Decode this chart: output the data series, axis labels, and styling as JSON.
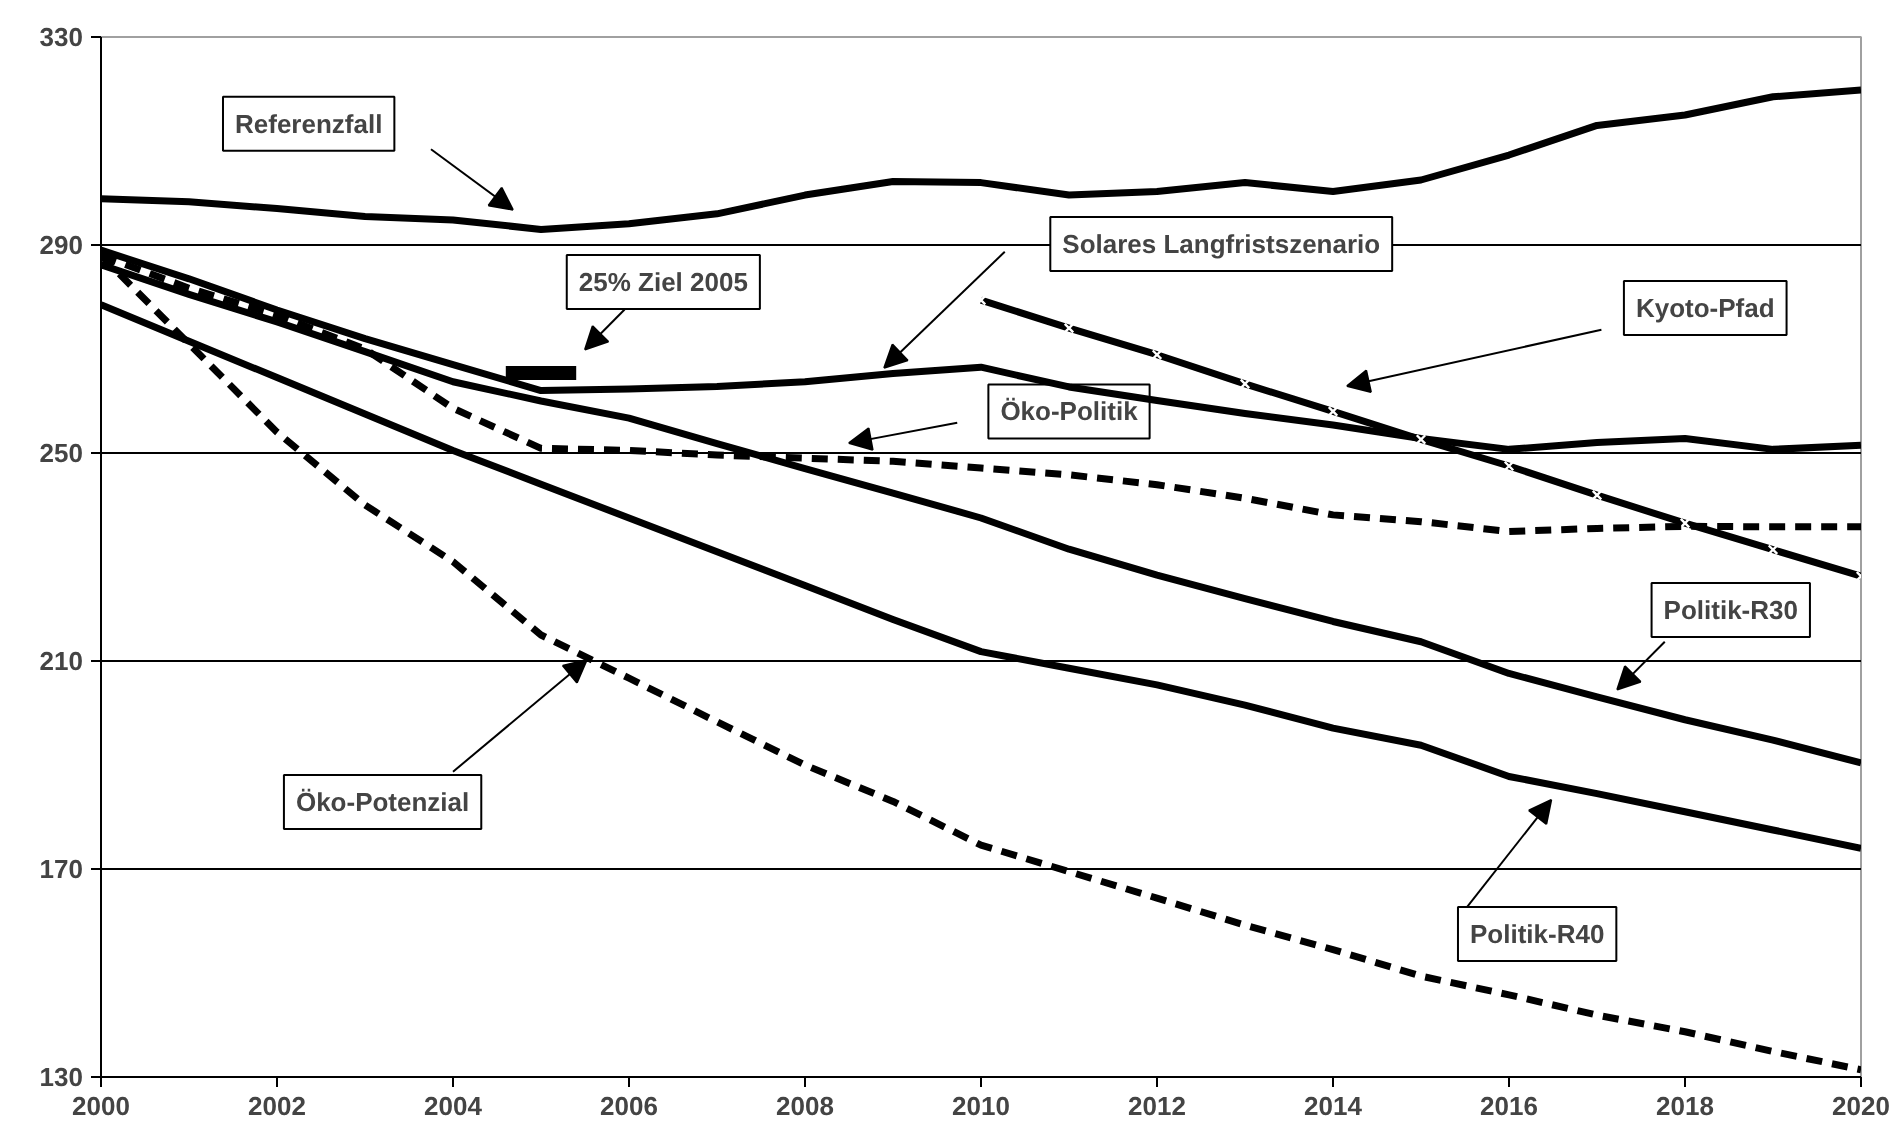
{
  "chart_data": {
    "type": "line",
    "x": [
      2000,
      2001,
      2002,
      2003,
      2004,
      2005,
      2006,
      2007,
      2008,
      2009,
      2010,
      2011,
      2012,
      2013,
      2014,
      2015,
      2016,
      2017,
      2018,
      2019,
      2020
    ],
    "xlim": [
      2000,
      2020
    ],
    "xticks": [
      2000,
      2002,
      2004,
      2006,
      2008,
      2010,
      2012,
      2014,
      2016,
      2018,
      2020
    ],
    "ylim": [
      130,
      330
    ],
    "yticks": [
      130,
      170,
      210,
      250,
      290,
      330
    ],
    "grid": "y",
    "marker": "none",
    "series": [
      {
        "name": "Referenzfall",
        "color": "#000000",
        "line_style": "solid",
        "values": [
          298.9,
          298.3,
          297,
          295.5,
          294.8,
          293,
          294.1,
          296,
          299.6,
          302.2,
          302,
          299.6,
          300.3,
          302,
          300.3,
          302.5,
          307.3,
          313,
          315,
          318.5,
          319.8
        ]
      },
      {
        "name": "25% Ziel 2005",
        "color": "#000000",
        "line_style": "solid",
        "x": [
          2004.6,
          2005.4
        ],
        "values": [
          265.4,
          265.4
        ]
      },
      {
        "name": "Solares Langfristszenario",
        "color": "#000000",
        "line_style": "solid",
        "values": [
          289,
          283.5,
          277.5,
          272,
          267,
          262,
          262.3,
          262.8,
          263.7,
          265.3,
          266.5,
          262.7,
          260.1,
          257.6,
          255.4,
          252.8,
          250.7,
          252,
          252.8,
          250.7,
          251.5
        ]
      },
      {
        "name": "Kyoto-Pfad",
        "color": "#000000",
        "line_style": "solid",
        "marker": "cross",
        "x": [
          2010,
          2011,
          2012,
          2013,
          2014,
          2015,
          2016,
          2017,
          2018,
          2019,
          2020
        ],
        "values": [
          279.4,
          274,
          268.9,
          263.3,
          258,
          252.6,
          247.5,
          241.9,
          236.5,
          231.4,
          226.3
        ]
      },
      {
        "name": "Öko-Politik",
        "color": "#000000",
        "line_style": "dashed",
        "values": [
          288,
          281.7,
          276.5,
          270,
          258.6,
          250.9,
          250.5,
          249.6,
          249,
          248.4,
          247.1,
          245.8,
          243.9,
          241.3,
          238.1,
          236.8,
          234.9,
          235.5,
          235.9,
          235.8,
          235.8
        ]
      },
      {
        "name": "Politik-R30",
        "color": "#000000",
        "line_style": "solid",
        "values": [
          286.2,
          280.5,
          275.2,
          269.5,
          263.7,
          260,
          256.7,
          251.8,
          247,
          242.3,
          237.5,
          231.5,
          226.5,
          222,
          217.6,
          213.7,
          207.6,
          203.1,
          198.7,
          194.8,
          190.4
        ]
      },
      {
        "name": "Politik-R40",
        "color": "#000000",
        "line_style": "solid",
        "values": [
          278.5,
          271.5,
          264.5,
          257.5,
          250.5,
          244,
          237.5,
          231,
          224.5,
          218,
          211.8,
          208.6,
          205.4,
          201.5,
          197.1,
          193.8,
          187.8,
          184.5,
          181,
          177.5,
          174
        ]
      },
      {
        "name": "Öko-Potenzial",
        "color": "#000000",
        "line_style": "dashed",
        "values": [
          288,
          271,
          254,
          240,
          229.1,
          215,
          206.7,
          198.3,
          190,
          183,
          174.6,
          169.5,
          164.4,
          159.2,
          154.5,
          149.4,
          145.8,
          141.9,
          138.7,
          134.9,
          131.4
        ]
      }
    ]
  }
}
